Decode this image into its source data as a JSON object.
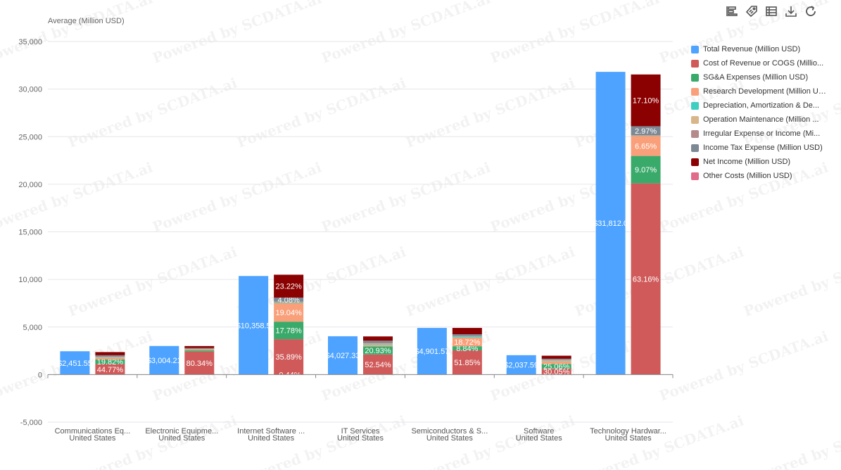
{
  "watermark": "Powered by SCDATA.ai",
  "toolbar": [
    {
      "name": "bar-chart-icon"
    },
    {
      "name": "tag-icon"
    },
    {
      "name": "table-icon"
    },
    {
      "name": "download-icon"
    },
    {
      "name": "refresh-icon"
    }
  ],
  "chart_data": {
    "type": "bar",
    "ylabel": "Average (Million USD)",
    "ylim": [
      -5000,
      35000
    ],
    "yticks": [
      -5000,
      0,
      5000,
      10000,
      15000,
      20000,
      25000,
      30000,
      35000
    ],
    "ytick_labels": [
      "-5,000",
      "0",
      "5,000",
      "10,000",
      "15,000",
      "20,000",
      "25,000",
      "30,000",
      "35,000"
    ],
    "grid": true,
    "legend_position": "right",
    "categories": [
      {
        "line1": "Communications Eq...",
        "line2": "United States"
      },
      {
        "line1": "Electronic Equipme...",
        "line2": "United States"
      },
      {
        "line1": "Internet Software ...",
        "line2": "United States"
      },
      {
        "line1": "IT Services",
        "line2": "United States"
      },
      {
        "line1": "Semiconductors & S...",
        "line2": "United States"
      },
      {
        "line1": "Software",
        "line2": "United States"
      },
      {
        "line1": "Technology Hardwar...",
        "line2": "United States"
      }
    ],
    "revenue": {
      "name": "Total Revenue (Million USD)",
      "color": "#4da3ff",
      "values": [
        2451.55,
        3004.21,
        10358.5,
        4027.33,
        4901.57,
        2037.59,
        31812.0
      ],
      "labels": [
        "$2,451.55",
        "$3,004.21",
        "$10,358.5",
        "$4,027.33",
        "$4,901.57",
        "$2,037.59",
        "$31,812.0"
      ]
    },
    "series": [
      {
        "name": "Cost of Revenue or COGS (Million USD)",
        "legend_label": "Cost of Revenue or COGS (Millio...",
        "color": "#d05a5a",
        "values": [
          1097.8,
          2413.6,
          3717.6,
          2115.8,
          2541.3,
          612.2,
          20092.5
        ],
        "labels": [
          "44.77%",
          "80.34%",
          "35.89%",
          "52.54%",
          "51.85%",
          "30.05%",
          "63.16%"
        ]
      },
      {
        "name": "SG&A Expenses (Million USD)",
        "legend_label": "SG&A Expenses (Million USD)",
        "color": "#3aaa6a",
        "values": [
          485.7,
          135.0,
          1842.3,
          842.8,
          433.3,
          510.6,
          2884.5
        ],
        "labels": [
          "19.82%",
          "",
          "17.78%",
          "20.93%",
          "8.84%",
          "25.06%",
          "9.07%"
        ]
      },
      {
        "name": "Research Development (Million USD)",
        "legend_label": "Research Development (Million USD)",
        "color": "#f9a07a",
        "values": [
          190,
          110,
          1972.2,
          150,
          917.6,
          290,
          2115.5
        ],
        "labels": [
          "",
          "",
          "19.04%",
          "",
          "18.72%",
          "",
          "6.65%"
        ]
      },
      {
        "name": "Depreciation, Amortization & Depletion (Million USD)",
        "legend_label": "Depreciation, Amortization & De...",
        "color": "#3fcfc0",
        "values": [
          40,
          30,
          95,
          90,
          120,
          60,
          20
        ],
        "labels": [
          "",
          "",
          "",
          "",
          "",
          "",
          ""
        ]
      },
      {
        "name": "Operation Maintenance (Million USD)",
        "legend_label": "Operation Maintenance (Million ...",
        "color": "#d9b68a",
        "values": [
          40,
          20,
          20,
          60,
          30,
          40,
          20
        ],
        "labels": [
          "",
          "",
          "",
          "",
          "",
          "",
          ""
        ]
      },
      {
        "name": "Irregular Expense or Income (Million USD)",
        "legend_label": "Irregular Expense or Income (Mi...",
        "color": "#b58a8a",
        "values": [
          30,
          10,
          20,
          60,
          20,
          60,
          20
        ],
        "labels": [
          "",
          "",
          "",
          "",
          "",
          "",
          ""
        ]
      },
      {
        "name": "Income Tax Expense (Million USD)",
        "legend_label": "Income Tax Expense (Million USD)",
        "color": "#7c8894",
        "values": [
          150,
          80,
          422.6,
          240,
          180,
          90,
          944.8
        ],
        "labels": [
          "",
          "",
          "4.08%",
          "",
          "",
          "",
          "2.97%"
        ]
      },
      {
        "name": "Net Income (Million USD)",
        "legend_label": "Net Income (Million USD)",
        "color": "#8b0000",
        "values": [
          330,
          200,
          2405.8,
          450,
          660,
          320,
          5439.9
        ],
        "labels": [
          "",
          "",
          "23.22%",
          "",
          "",
          "",
          "17.10%"
        ]
      },
      {
        "name": "Other Costs (Million USD)",
        "legend_label": "Other Costs (Million USD)",
        "color": "#e06b8b",
        "values": [
          0,
          0,
          -45.6,
          0,
          0,
          0,
          0
        ],
        "labels": [
          "",
          "",
          "-0.44%",
          "",
          "",
          "",
          ""
        ]
      }
    ]
  }
}
